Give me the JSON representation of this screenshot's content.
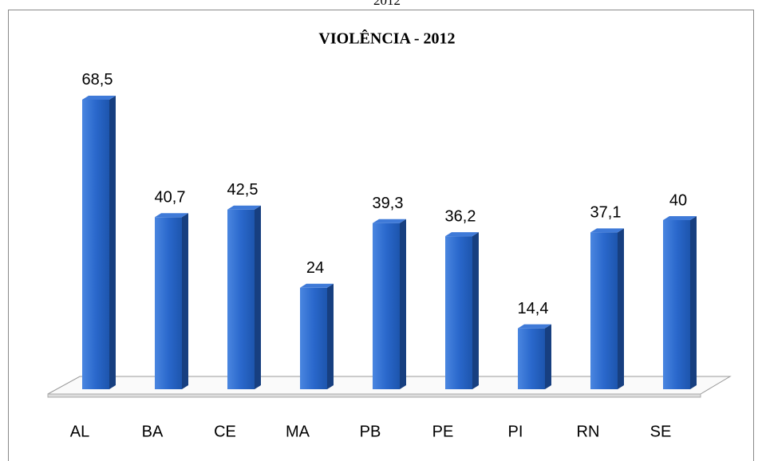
{
  "caption": "2012",
  "chart_data": {
    "type": "bar3d",
    "title": "VIOLÊNCIA - 2012",
    "categories": [
      "AL",
      "BA",
      "CE",
      "MA",
      "PB",
      "PE",
      "PI",
      "RN",
      "SE"
    ],
    "values": [
      68.5,
      40.7,
      42.5,
      24,
      39.3,
      36.2,
      14.4,
      37.1,
      40
    ],
    "value_labels": [
      "68,5",
      "40,7",
      "42,5",
      "24",
      "39,3",
      "36,2",
      "14,4",
      "37,1",
      "40"
    ],
    "color": "#2563c4"
  }
}
